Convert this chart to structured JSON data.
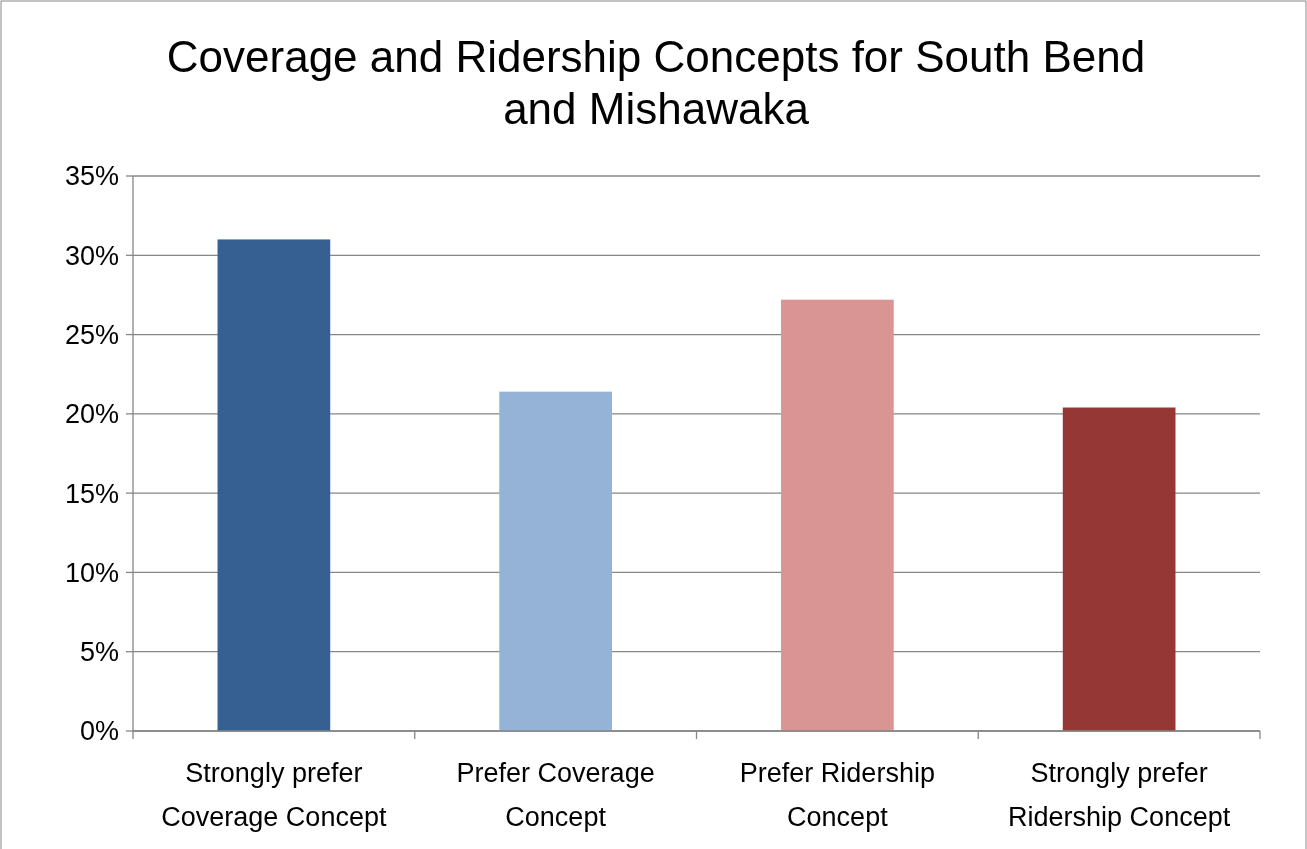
{
  "chart_data": {
    "type": "bar",
    "title": "Coverage and Ridership Concepts for South Bend and Mishawaka",
    "categories": [
      "Strongly prefer Coverage Concept",
      "Prefer Coverage Concept",
      "Prefer Ridership Concept",
      "Strongly prefer Ridership Concept"
    ],
    "values": [
      31.0,
      21.4,
      27.2,
      20.4
    ],
    "colors": [
      "#376092",
      "#95b3d7",
      "#d99594",
      "#953735"
    ],
    "ylim": [
      0,
      35
    ],
    "yticks": [
      {
        "value": 0,
        "label": "0%"
      },
      {
        "value": 5,
        "label": "5%"
      },
      {
        "value": 10,
        "label": "10%"
      },
      {
        "value": 15,
        "label": "15%"
      },
      {
        "value": 20,
        "label": "20%"
      },
      {
        "value": 25,
        "label": "25%"
      },
      {
        "value": 30,
        "label": "30%"
      },
      {
        "value": 35,
        "label": "35%"
      }
    ],
    "grid": "y"
  }
}
